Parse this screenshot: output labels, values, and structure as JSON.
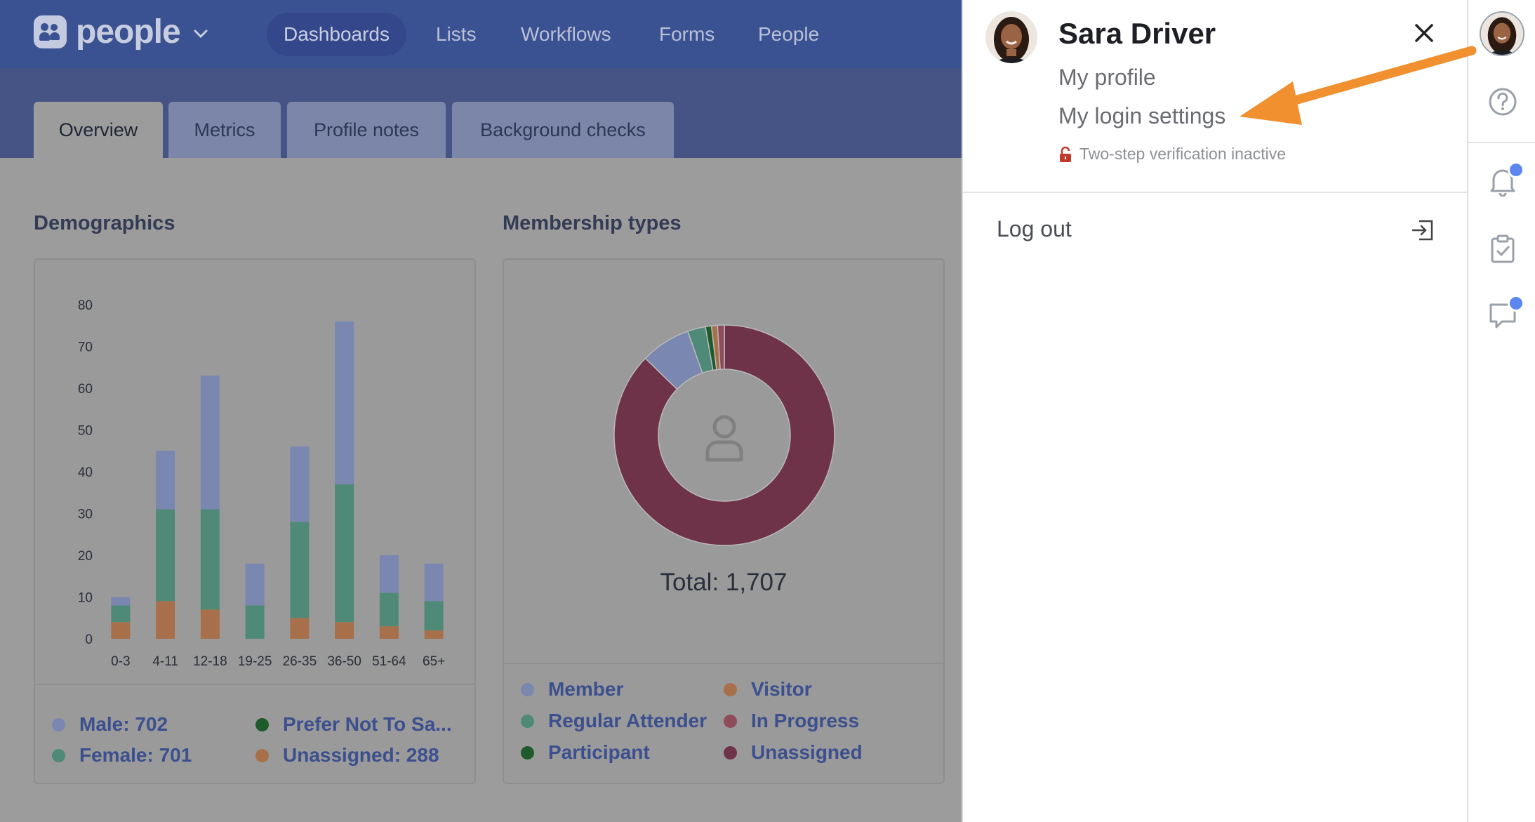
{
  "app": {
    "logo_text": "people",
    "nav": [
      "Dashboards",
      "Lists",
      "Workflows",
      "Forms",
      "People"
    ],
    "active_nav": "Dashboards",
    "tabs": [
      "Overview",
      "Metrics",
      "Profile notes",
      "Background checks"
    ],
    "active_tab": "Overview"
  },
  "demographics": {
    "title": "Demographics",
    "legend": [
      {
        "label": "Male: 702",
        "color": "#7a87b0"
      },
      {
        "label": "Prefer Not To Sa...",
        "color": "#1f5a2b"
      },
      {
        "label": "Female: 701",
        "color": "#4f8a78"
      },
      {
        "label": "Unassigned: 288",
        "color": "#a8704a"
      }
    ]
  },
  "membership": {
    "title": "Membership types",
    "total_label": "Total: 1,707",
    "legend": [
      {
        "label": "Member",
        "color": "#7a87b0"
      },
      {
        "label": "Visitor",
        "color": "#a8704a"
      },
      {
        "label": "Regular Attender",
        "color": "#4f8a78"
      },
      {
        "label": "In Progress",
        "color": "#8e4c5a"
      },
      {
        "label": "Participant",
        "color": "#1f5a2b"
      },
      {
        "label": "Unassigned",
        "color": "#6e3349"
      }
    ]
  },
  "chart_data": [
    {
      "type": "bar",
      "stacked": true,
      "categories": [
        "0-3",
        "4-11",
        "12-18",
        "19-25",
        "26-35",
        "36-50",
        "51-64",
        "65+"
      ],
      "series": [
        {
          "name": "Unassigned",
          "values": [
            4,
            9,
            7,
            0,
            5,
            4,
            3,
            2
          ],
          "color": "#a8704a"
        },
        {
          "name": "Female",
          "values": [
            4,
            22,
            24,
            8,
            23,
            33,
            8,
            7
          ],
          "color": "#4f8a78"
        },
        {
          "name": "Male",
          "values": [
            2,
            14,
            32,
            10,
            18,
            39,
            9,
            9
          ],
          "color": "#7a87b0"
        }
      ],
      "yticks": [
        0,
        10,
        20,
        30,
        40,
        50,
        60,
        70,
        80
      ],
      "ylim": [
        0,
        80
      ]
    },
    {
      "type": "pie",
      "donut": true,
      "categories": [
        "Unassigned",
        "Member",
        "Regular Attender",
        "Participant",
        "Visitor",
        "In Progress"
      ],
      "values": [
        1490,
        125,
        45,
        15,
        15,
        17
      ],
      "colors": [
        "#6e3349",
        "#7a87b0",
        "#4f8a78",
        "#1f5a2b",
        "#a8704a",
        "#8e4c5a"
      ]
    }
  ],
  "panel": {
    "user_name": "Sara Driver",
    "my_profile": "My profile",
    "login_settings": "My login settings",
    "two_step": "Two-step verification inactive",
    "logout": "Log out"
  },
  "colors": {
    "annotation_arrow": "#f0902f",
    "badge": "#5a86f0"
  }
}
